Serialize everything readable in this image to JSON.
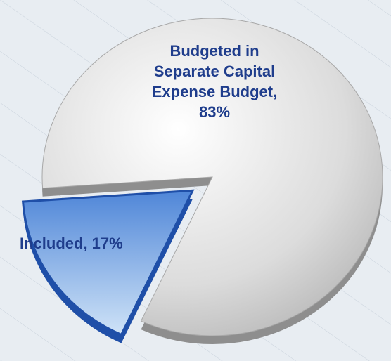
{
  "chart_data": {
    "type": "pie",
    "values": [
      83,
      17
    ],
    "value_labels": [
      "Budgeted in Separate Capital Expense Budget, 83%",
      "Included, 17%"
    ],
    "colors": [
      "#d4d4d4",
      "#5c95e0"
    ],
    "explode": [
      0,
      1
    ]
  }
}
